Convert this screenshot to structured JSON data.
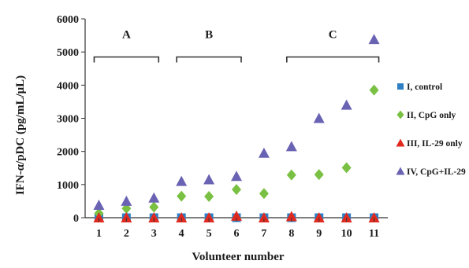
{
  "chart_data": {
    "type": "scatter",
    "title": "",
    "xlabel": "Volunteer number",
    "ylabel": "IFN-α/pDC (pg/mL/μL)",
    "ylim": [
      0,
      6000
    ],
    "xlim": [
      0.5,
      11.5
    ],
    "yticks": [
      "0",
      "1000",
      "2000",
      "3000",
      "4000",
      "5000",
      "6000"
    ],
    "xticks": [
      "1",
      "2",
      "3",
      "4",
      "5",
      "6",
      "7",
      "8",
      "9",
      "10",
      "11"
    ],
    "x": [
      1,
      2,
      3,
      4,
      5,
      6,
      7,
      8,
      9,
      10,
      11
    ],
    "grid": false,
    "legend": "right",
    "series": [
      {
        "name": "I, control",
        "marker": "square",
        "color": "#2e7fc4",
        "values": [
          0,
          0,
          0,
          0,
          0,
          0,
          0,
          0,
          0,
          0,
          0
        ]
      },
      {
        "name": "II, CpG only",
        "marker": "diamond",
        "color": "#79c043",
        "values": [
          130,
          280,
          320,
          650,
          640,
          850,
          730,
          1290,
          1300,
          1510,
          3850
        ]
      },
      {
        "name": "III, IL-29 only",
        "marker": "triangle",
        "color": "#e02a20",
        "values": [
          0,
          0,
          0,
          0,
          0,
          50,
          0,
          40,
          0,
          0,
          0
        ]
      },
      {
        "name": "IV, CpG+IL-29",
        "marker": "triangle",
        "color": "#6a63b3",
        "values": [
          380,
          500,
          600,
          1100,
          1150,
          1250,
          1950,
          2150,
          3000,
          3400,
          5380
        ]
      }
    ],
    "groups": [
      {
        "label": "A",
        "from": 1,
        "to": 3
      },
      {
        "label": "B",
        "from": 4,
        "to": 6
      },
      {
        "label": "C",
        "from": 8,
        "to": 11
      }
    ],
    "group_level": 4850
  }
}
